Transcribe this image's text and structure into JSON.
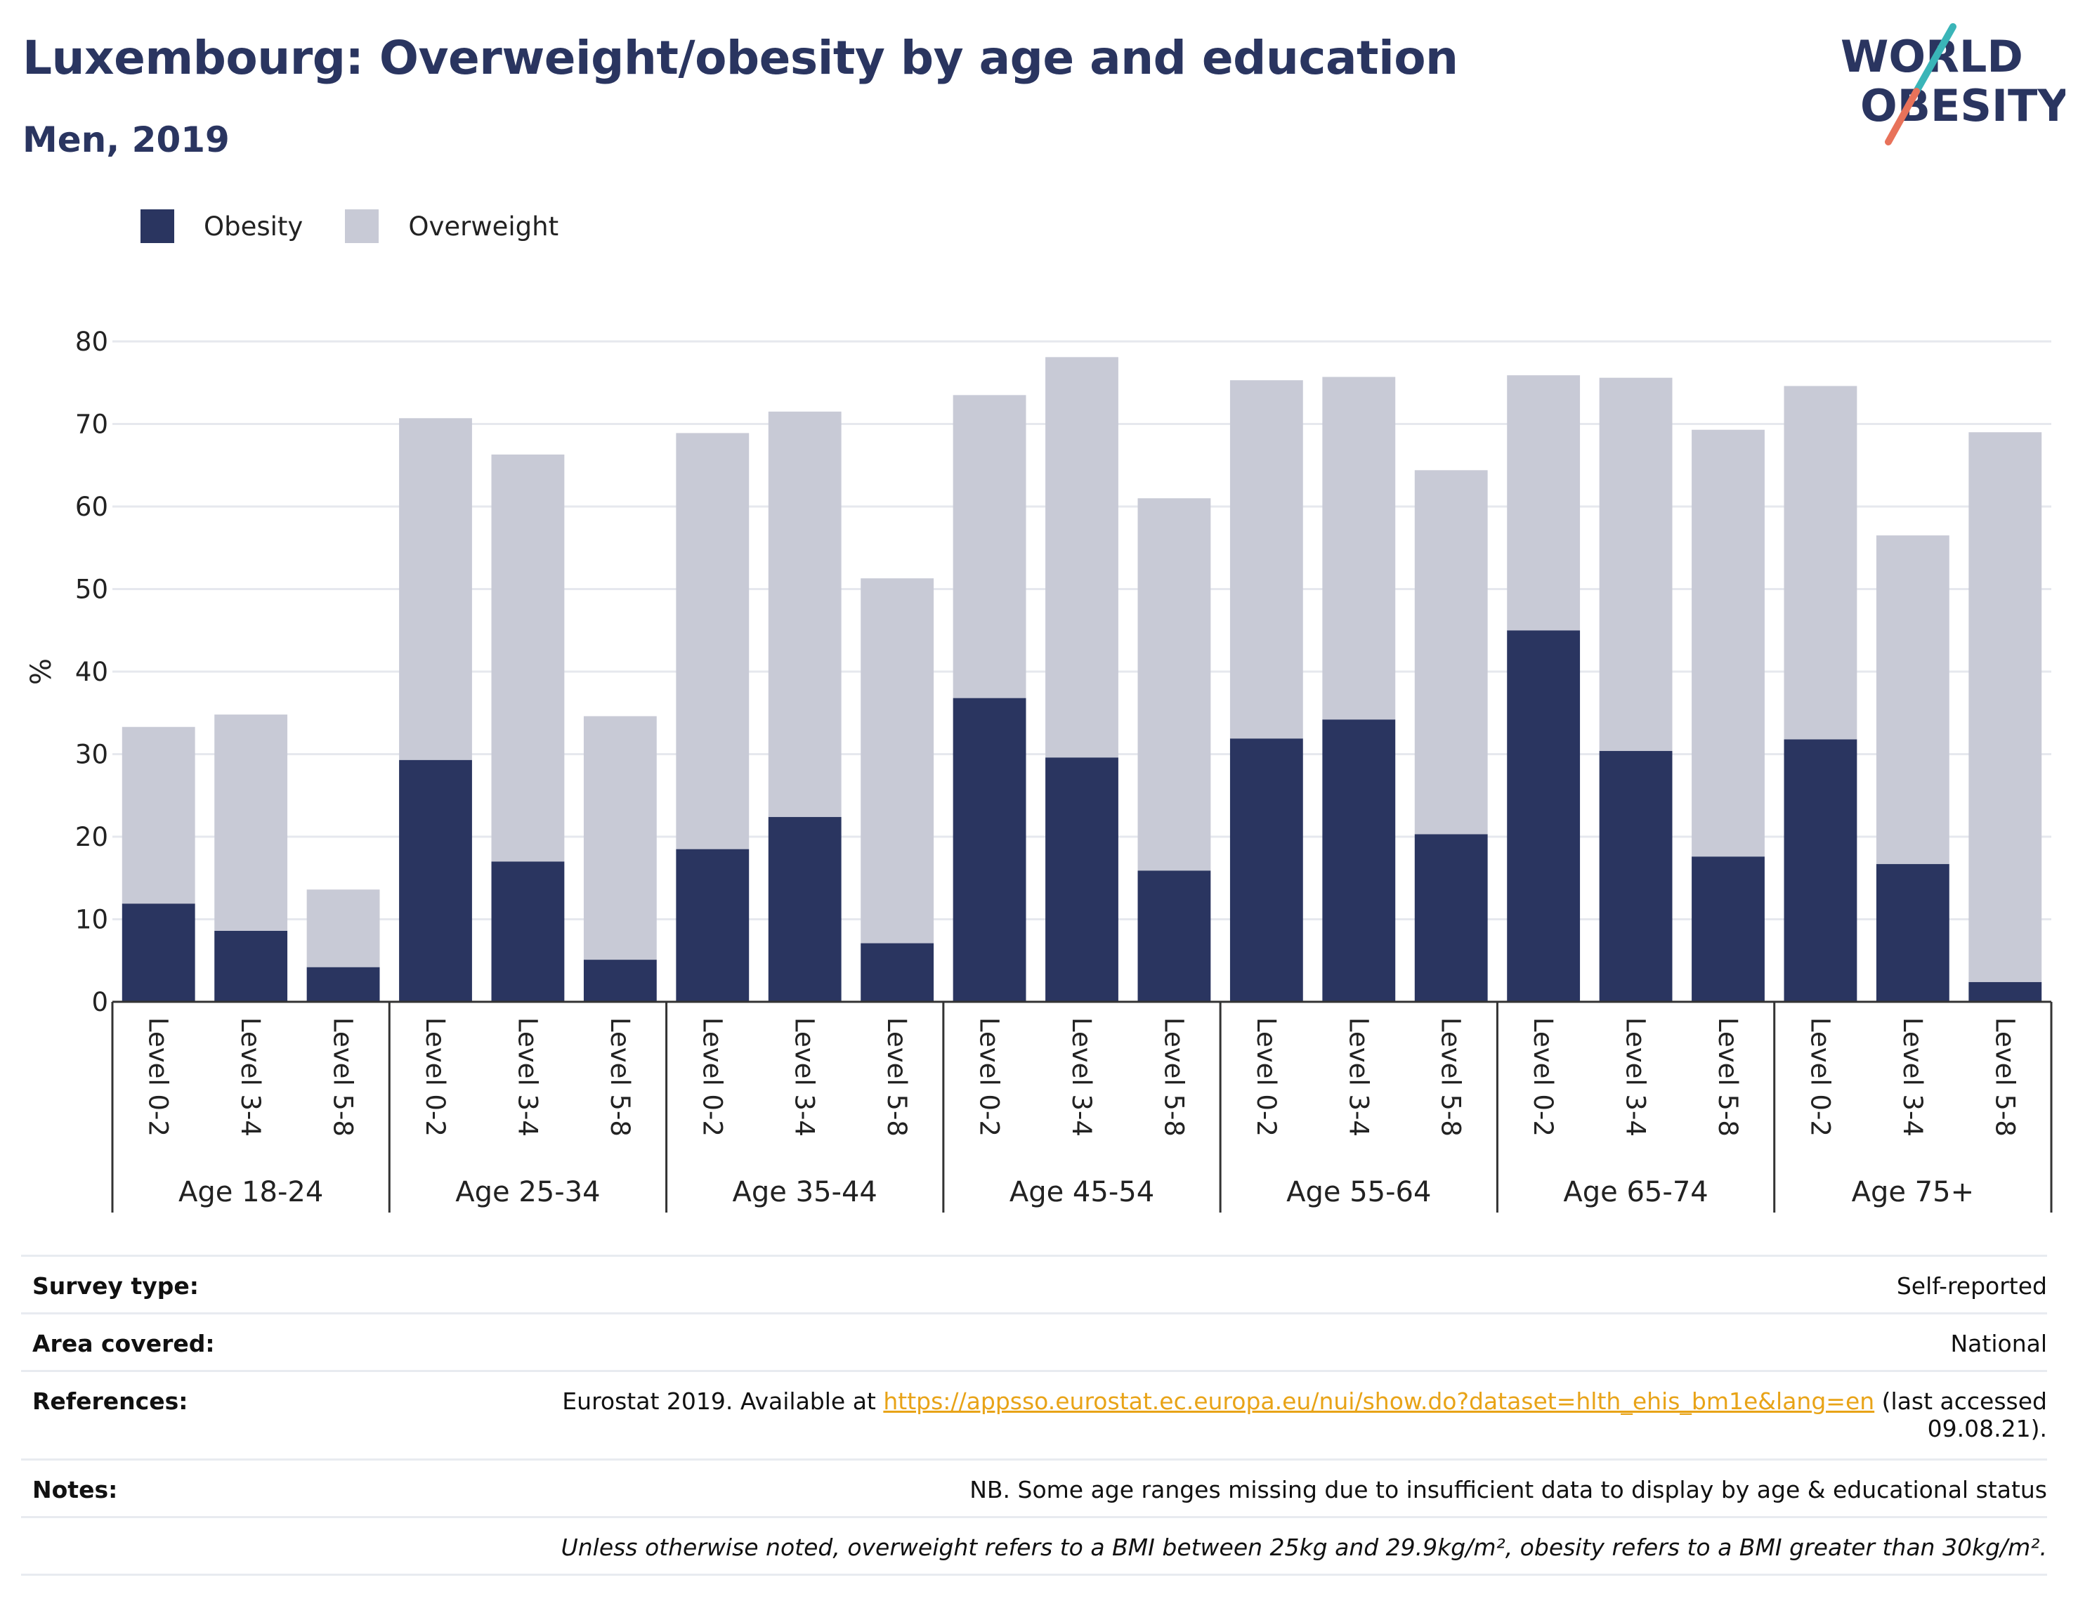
{
  "header": {
    "title": "Luxembourg: Overweight/obesity by age and education",
    "subtitle": "Men, 2019",
    "logo_line1": "WORLD",
    "logo_line2": "OBESITY"
  },
  "legend": {
    "obesity_label": "Obesity",
    "overweight_label": "Overweight"
  },
  "colors": {
    "obesity": "#2a3560",
    "overweight": "#c8cad6",
    "link": "#e8a317",
    "logo_slash_teal": "#3ab5b8",
    "logo_slash_coral": "#e8725a"
  },
  "chart_data": {
    "type": "bar",
    "stacked": true,
    "ylabel": "%",
    "ylim": [
      0,
      80
    ],
    "yticks": [
      0,
      10,
      20,
      30,
      40,
      50,
      60,
      70,
      80
    ],
    "grid": true,
    "legend_position": "top-left",
    "groups": [
      "Age 18-24",
      "Age 25-34",
      "Age 35-44",
      "Age 45-54",
      "Age 55-64",
      "Age 65-74",
      "Age 75+"
    ],
    "subcategories": [
      "Level 0-2",
      "Level 3-4",
      "Level 5-8"
    ],
    "categories": [
      "Age 18-24 Level 0-2",
      "Age 18-24 Level 3-4",
      "Age 18-24 Level 5-8",
      "Age 25-34 Level 0-2",
      "Age 25-34 Level 3-4",
      "Age 25-34 Level 5-8",
      "Age 35-44 Level 0-2",
      "Age 35-44 Level 3-4",
      "Age 35-44 Level 5-8",
      "Age 45-54 Level 0-2",
      "Age 45-54 Level 3-4",
      "Age 45-54 Level 5-8",
      "Age 55-64 Level 0-2",
      "Age 55-64 Level 3-4",
      "Age 55-64 Level 5-8",
      "Age 65-74 Level 0-2",
      "Age 65-74 Level 3-4",
      "Age 65-74 Level 5-8",
      "Age 75+ Level 0-2",
      "Age 75+ Level 3-4",
      "Age 75+ Level 5-8"
    ],
    "series": [
      {
        "name": "Obesity",
        "values": [
          11.9,
          8.6,
          4.2,
          29.3,
          17.0,
          5.1,
          18.5,
          22.4,
          7.1,
          36.8,
          29.6,
          15.9,
          31.9,
          34.2,
          20.3,
          45.0,
          30.4,
          17.6,
          31.8,
          16.7,
          2.4
        ]
      },
      {
        "name": "Overweight",
        "values": [
          21.4,
          26.2,
          9.4,
          41.4,
          49.3,
          29.5,
          50.4,
          49.1,
          44.2,
          36.7,
          48.5,
          45.1,
          43.4,
          41.5,
          44.1,
          30.9,
          45.2,
          51.7,
          42.8,
          39.8,
          66.6
        ]
      }
    ]
  },
  "info": {
    "rows": [
      {
        "label": "Survey type:",
        "value": "Self-reported"
      },
      {
        "label": "Area covered:",
        "value": "National"
      }
    ],
    "references_label": "References:",
    "references_prefix": "Eurostat 2019. Available at ",
    "references_link": "https://appsso.eurostat.ec.europa.eu/nui/show.do?dataset=hlth_ehis_bm1e&lang=en",
    "references_suffix": " (last accessed",
    "references_date": "09.08.21).",
    "notes_label": "Notes:",
    "notes_value": "NB. Some age ranges missing due to insufficient data to display by age & educational status",
    "footnote": "Unless otherwise noted, overweight refers to a BMI between 25kg and 29.9kg/m², obesity refers to a BMI greater than 30kg/m²."
  }
}
